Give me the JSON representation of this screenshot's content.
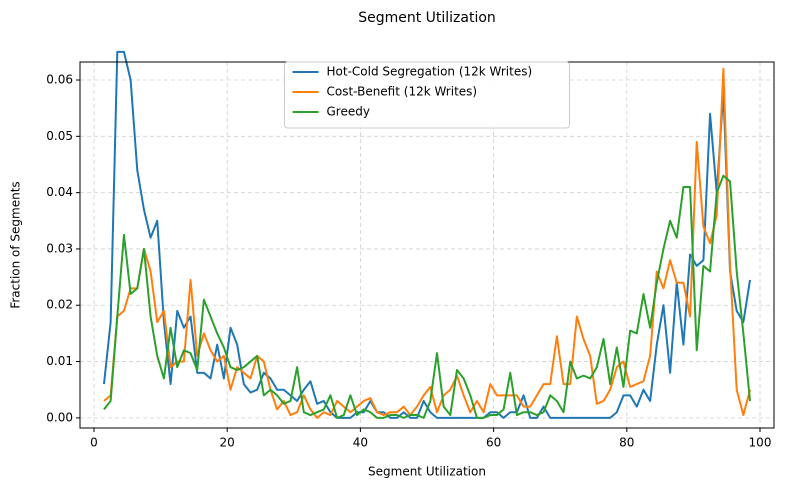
{
  "chart_data": {
    "type": "line",
    "title": "Segment Utilization",
    "xlabel": "Segment Utilization",
    "ylabel": "Fraction of Segments",
    "x": [
      1.5,
      2.5,
      3.5,
      4.5,
      5.5,
      6.5,
      7.5,
      8.5,
      9.5,
      10.5,
      11.5,
      12.5,
      13.5,
      14.5,
      15.5,
      16.5,
      17.5,
      18.5,
      19.5,
      20.5,
      21.5,
      22.5,
      23.5,
      24.5,
      25.5,
      26.5,
      27.5,
      28.5,
      29.5,
      30.5,
      31.5,
      32.5,
      33.5,
      34.5,
      35.5,
      36.5,
      37.5,
      38.5,
      39.5,
      40.5,
      41.5,
      42.5,
      43.5,
      44.5,
      45.5,
      46.5,
      47.5,
      48.5,
      49.5,
      50.5,
      51.5,
      52.5,
      53.5,
      54.5,
      55.5,
      56.5,
      57.5,
      58.5,
      59.5,
      60.5,
      61.5,
      62.5,
      63.5,
      64.5,
      65.5,
      66.5,
      67.5,
      68.5,
      69.5,
      70.5,
      71.5,
      72.5,
      73.5,
      74.5,
      75.5,
      76.5,
      77.5,
      78.5,
      79.5,
      80.5,
      81.5,
      82.5,
      83.5,
      84.5,
      85.5,
      86.5,
      87.5,
      88.5,
      89.5,
      90.5,
      91.5,
      92.5,
      93.5,
      94.5,
      95.5,
      96.5,
      97.5,
      98.5
    ],
    "series": [
      {
        "name": "Hot-Cold Segregation (12k Writes)",
        "color": "#1f77b4",
        "values": [
          0.006,
          0.017,
          0.065,
          0.065,
          0.06,
          0.044,
          0.037,
          0.032,
          0.035,
          0.017,
          0.006,
          0.019,
          0.016,
          0.018,
          0.008,
          0.008,
          0.007,
          0.013,
          0.007,
          0.016,
          0.013,
          0.006,
          0.0045,
          0.005,
          0.008,
          0.007,
          0.005,
          0.005,
          0.004,
          0.003,
          0.005,
          0.0065,
          0.0025,
          0.003,
          0.001,
          0,
          0,
          0,
          0.001,
          0.001,
          0.003,
          0.001,
          0.001,
          0,
          0,
          0.001,
          0,
          0,
          0.003,
          0.001,
          0,
          0,
          0,
          0,
          0,
          0,
          0,
          0,
          0.001,
          0.001,
          0,
          0.001,
          0.001,
          0.004,
          0,
          0,
          0.002,
          0,
          0,
          0,
          0,
          0,
          0,
          0,
          0,
          0,
          0,
          0.001,
          0.004,
          0.004,
          0.002,
          0.005,
          0.003,
          0.013,
          0.02,
          0.008,
          0.024,
          0.013,
          0.029,
          0.027,
          0.028,
          0.054,
          0.04,
          0.058,
          0.026,
          0.019,
          0.017,
          0.0245
        ]
      },
      {
        "name": "Cost-Benefit (12k Writes)",
        "color": "#ff7f0e",
        "values": [
          0.003,
          0.004,
          0.018,
          0.019,
          0.023,
          0.023,
          0.03,
          0.026,
          0.017,
          0.019,
          0.009,
          0.01,
          0.01,
          0.0245,
          0.011,
          0.015,
          0.012,
          0.01,
          0.011,
          0.005,
          0.009,
          0.008,
          0.007,
          0.011,
          0.01,
          0.005,
          0.0015,
          0.003,
          0.0005,
          0.001,
          0.004,
          0.0015,
          0,
          0.001,
          0.0005,
          0.003,
          0.002,
          0.001,
          0.002,
          0.003,
          0.0035,
          0.001,
          0.0005,
          0.001,
          0.001,
          0.002,
          0.0005,
          0.002,
          0.004,
          0.0055,
          0.001,
          0.004,
          0.005,
          0.0075,
          0.004,
          0.001,
          0.003,
          0.001,
          0.006,
          0.004,
          0.004,
          0.004,
          0.004,
          0.002,
          0.002,
          0.004,
          0.006,
          0.006,
          0.0145,
          0.006,
          0.006,
          0.018,
          0.014,
          0.011,
          0.0025,
          0.003,
          0.005,
          0.009,
          0.01,
          0.0055,
          0.006,
          0.0065,
          0.011,
          0.026,
          0.023,
          0.028,
          0.024,
          0.024,
          0.018,
          0.049,
          0.034,
          0.031,
          0.036,
          0.062,
          0.027,
          0.005,
          0.0005,
          0.005
        ]
      },
      {
        "name": "Greedy",
        "color": "#2ca02c",
        "values": [
          0.0015,
          0.003,
          0.018,
          0.0325,
          0.022,
          0.023,
          0.03,
          0.018,
          0.011,
          0.007,
          0.016,
          0.009,
          0.012,
          0.0115,
          0.0085,
          0.021,
          0.018,
          0.015,
          0.0125,
          0.009,
          0.0085,
          0.009,
          0.01,
          0.011,
          0.004,
          0.005,
          0.004,
          0.0025,
          0.003,
          0.009,
          0.001,
          0.0005,
          0.001,
          0.0015,
          0.004,
          0,
          0.0005,
          0.004,
          0.0005,
          0.0015,
          0.001,
          0,
          0,
          0.0005,
          0.0005,
          0,
          0.0005,
          0.0005,
          0,
          0.003,
          0.0115,
          0.002,
          0.0005,
          0.0085,
          0.007,
          0.004,
          0,
          0,
          0.0005,
          0.0005,
          0.0015,
          0.008,
          0.0005,
          0.001,
          0.001,
          0.0005,
          0.001,
          0.004,
          0.003,
          0.001,
          0.01,
          0.007,
          0.0075,
          0.007,
          0.009,
          0.014,
          0.006,
          0.0125,
          0.0055,
          0.0155,
          0.015,
          0.022,
          0.016,
          0.024,
          0.03,
          0.035,
          0.032,
          0.041,
          0.041,
          0.012,
          0.027,
          0.026,
          0.04,
          0.043,
          0.042,
          0.026,
          0.015,
          0.003
        ]
      }
    ],
    "xlim": [
      -2.1,
      102.1
    ],
    "ylim": [
      -0.0018,
      0.0632
    ],
    "xticks": [
      0,
      20,
      40,
      60,
      80,
      100
    ],
    "yticks": [
      {
        "value": 0,
        "label": "0.00"
      },
      {
        "value": 0.01,
        "label": "0.01"
      },
      {
        "value": 0.02,
        "label": "0.02"
      },
      {
        "value": 0.03,
        "label": "0.03"
      },
      {
        "value": 0.04,
        "label": "0.04"
      },
      {
        "value": 0.05,
        "label": "0.05"
      },
      {
        "value": 0.06,
        "label": "0.06"
      }
    ],
    "grid": true,
    "legend": "upper center"
  }
}
